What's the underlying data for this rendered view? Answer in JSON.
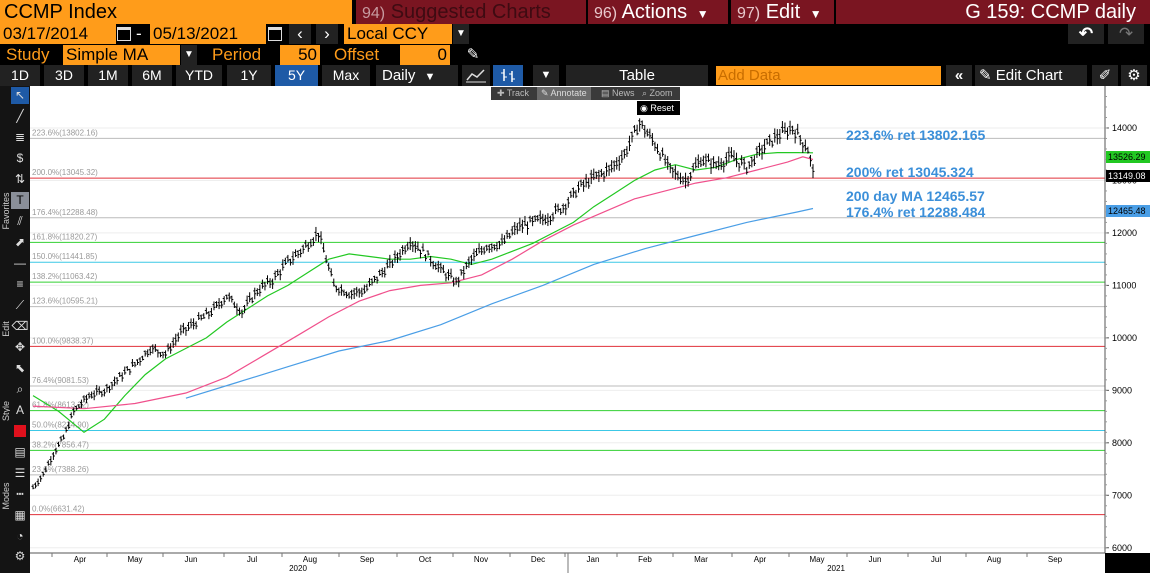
{
  "header": {
    "ticker": "CCMP Index",
    "suggested_num": "94)",
    "suggested_label": "Suggested Charts",
    "actions_num": "96)",
    "actions_label": "Actions",
    "edit_num": "97)",
    "edit_label": "Edit",
    "chart_id": "G 159: CCMP daily"
  },
  "range": {
    "start": "03/17/2014",
    "dash": "-",
    "end": "05/13/2021",
    "currency": "Local CCY"
  },
  "study": {
    "label": "Study",
    "type": "Simple MA",
    "period_label": "Period",
    "period": "50",
    "offset_label": "Offset",
    "offset": "0"
  },
  "periods": [
    "1D",
    "3D",
    "1M",
    "6M",
    "YTD",
    "1Y",
    "5Y",
    "Max"
  ],
  "selected_period": "5Y",
  "toolbar": {
    "frequency": "Daily",
    "table_label": "Table",
    "add_data_placeholder": "Add Data",
    "edit_chart_label": "Edit Chart"
  },
  "mini_toolbar": {
    "track": "Track",
    "annotate": "Annotate",
    "news": "News",
    "zoom": "Zoom",
    "reset": "Reset"
  },
  "side_labels": {
    "favorites": "Favorites",
    "edit": "Edit",
    "style": "Style",
    "modes": "Modes"
  },
  "colors": {
    "amber": "#ff9c1a",
    "maroon": "#7a1521",
    "select_blue": "#1e5aa6",
    "annotation": "#3b8fd9",
    "ma50": "#22c822",
    "ma100": "#f0508c",
    "ma200": "#4a9ee6",
    "price": "#000000"
  },
  "annotations": [
    {
      "text": "223.6% ret 13802.165"
    },
    {
      "text": "200% ret 13045.324"
    },
    {
      "text": "200 day MA 12465.57"
    },
    {
      "text": "176.4% ret 12288.484"
    }
  ],
  "chart_data": {
    "type": "line",
    "ylim": [
      5900,
      14800
    ],
    "y_ticks": [
      6000,
      7000,
      8000,
      9000,
      10000,
      11000,
      12000,
      13000,
      14000
    ],
    "x_months": [
      "Apr",
      "May",
      "Jun",
      "Jul",
      "Aug",
      "Sep",
      "Oct",
      "Nov",
      "Dec",
      "Jan",
      "Feb",
      "Mar",
      "Apr",
      "May",
      "Jun",
      "Jul",
      "Aug",
      "Sep"
    ],
    "x_years": [
      "2020",
      "2021"
    ],
    "last_value_labels": [
      {
        "value": "13526.29",
        "color": "#22c822"
      },
      {
        "value": "13149.08",
        "color": "#000000"
      },
      {
        "value": "12465.48",
        "color": "#4a9ee6"
      }
    ],
    "fib_levels": [
      {
        "label": "223.6%(13802.16)",
        "value": 13802.16,
        "color": "#bbbbbb"
      },
      {
        "label": "200.0%(13045.32)",
        "value": 13045.32,
        "color": "#e0303a"
      },
      {
        "label": "176.4%(12288.48)",
        "value": 12288.48,
        "color": "#bbbbbb"
      },
      {
        "label": "161.8%(11820.27)",
        "value": 11820.27,
        "color": "#33d133"
      },
      {
        "label": "150.0%(11441.85)",
        "value": 11441.85,
        "color": "#3cc8e6"
      },
      {
        "label": "138.2%(11063.42)",
        "value": 11063.42,
        "color": "#33d133"
      },
      {
        "label": "123.6%(10595.21)",
        "value": 10595.21,
        "color": "#bbbbbb"
      },
      {
        "label": "100.0%(9838.37)",
        "value": 9838.37,
        "color": "#e0303a"
      },
      {
        "label": "76.4%(9081.53)",
        "value": 9081.53,
        "color": "#bbbbbb"
      },
      {
        "label": "61.8%(8613.32)",
        "value": 8613.32,
        "color": "#33d133"
      },
      {
        "label": "50.0%(8234.90)",
        "value": 8234.9,
        "color": "#3cc8e6"
      },
      {
        "label": "38.2%(7856.47)",
        "value": 7856.47,
        "color": "#33d133"
      },
      {
        "label": "23.6%(7388.26)",
        "value": 7388.26,
        "color": "#bbbbbb"
      },
      {
        "label": "0.0%(6631.42)",
        "value": 6631.42,
        "color": "#e0303a"
      }
    ],
    "series": [
      {
        "name": "CCMP",
        "color": "#000000",
        "x": [
          0,
          4,
          8,
          12,
          16,
          22,
          28,
          34,
          40,
          46,
          52,
          58,
          64,
          70,
          76,
          82,
          88,
          94,
          100,
          106,
          112,
          118,
          124,
          130,
          136,
          142,
          148,
          154,
          160,
          166,
          172,
          178,
          184,
          190,
          196,
          202,
          208,
          214,
          220,
          226,
          232,
          238,
          244,
          250,
          256,
          262,
          268,
          274,
          280,
          286,
          292,
          298,
          304,
          306
        ],
        "values": [
          7150,
          7400,
          7800,
          8100,
          8600,
          8900,
          9000,
          9250,
          9500,
          9800,
          9700,
          10100,
          10300,
          10500,
          10800,
          10500,
          10900,
          11100,
          11450,
          11700,
          12000,
          11000,
          10850,
          10900,
          11200,
          11500,
          11850,
          11600,
          11300,
          11050,
          11500,
          11750,
          11800,
          12100,
          12200,
          12300,
          12500,
          12850,
          13050,
          13200,
          13500,
          14100,
          13700,
          13200,
          13000,
          13400,
          13300,
          13450,
          13250,
          13600,
          13850,
          14000,
          13600,
          13150
        ]
      },
      {
        "name": "MA 50",
        "color": "#22c822",
        "x": [
          0,
          10,
          20,
          28,
          36,
          44,
          52,
          60,
          68,
          76,
          84,
          92,
          100,
          108,
          116,
          124,
          132,
          140,
          148,
          156,
          164,
          172,
          180,
          188,
          196,
          204,
          212,
          220,
          228,
          236,
          244,
          252,
          260,
          268,
          276,
          284,
          292,
          300,
          306
        ],
        "values": [
          8900,
          8600,
          8200,
          8450,
          8900,
          9300,
          9600,
          9800,
          10000,
          10300,
          10550,
          10800,
          11000,
          11250,
          11500,
          11600,
          11550,
          11500,
          11500,
          11550,
          11500,
          11400,
          11500,
          11650,
          11800,
          12000,
          12200,
          12500,
          12750,
          13000,
          13200,
          13300,
          13200,
          13250,
          13400,
          13500,
          13530,
          13530,
          13526
        ]
      },
      {
        "name": "MA 100",
        "color": "#f0508c",
        "x": [
          0,
          20,
          40,
          60,
          76,
          90,
          104,
          116,
          128,
          140,
          152,
          164,
          176,
          188,
          200,
          212,
          224,
          236,
          248,
          260,
          272,
          284,
          296,
          302,
          306
        ],
        "values": [
          8700,
          8650,
          8750,
          8950,
          9250,
          9650,
          10050,
          10400,
          10700,
          10900,
          11000,
          11050,
          11200,
          11500,
          11850,
          12150,
          12400,
          12650,
          12800,
          12950,
          13050,
          13200,
          13350,
          13450,
          13400
        ]
      },
      {
        "name": "MA 200",
        "color": "#4a9ee6",
        "x": [
          60,
          80,
          100,
          120,
          140,
          160,
          180,
          200,
          220,
          240,
          260,
          280,
          300,
          306
        ],
        "values": [
          8850,
          9150,
          9450,
          9750,
          9950,
          10250,
          10650,
          11000,
          11400,
          11700,
          11950,
          12200,
          12400,
          12465
        ]
      }
    ]
  }
}
